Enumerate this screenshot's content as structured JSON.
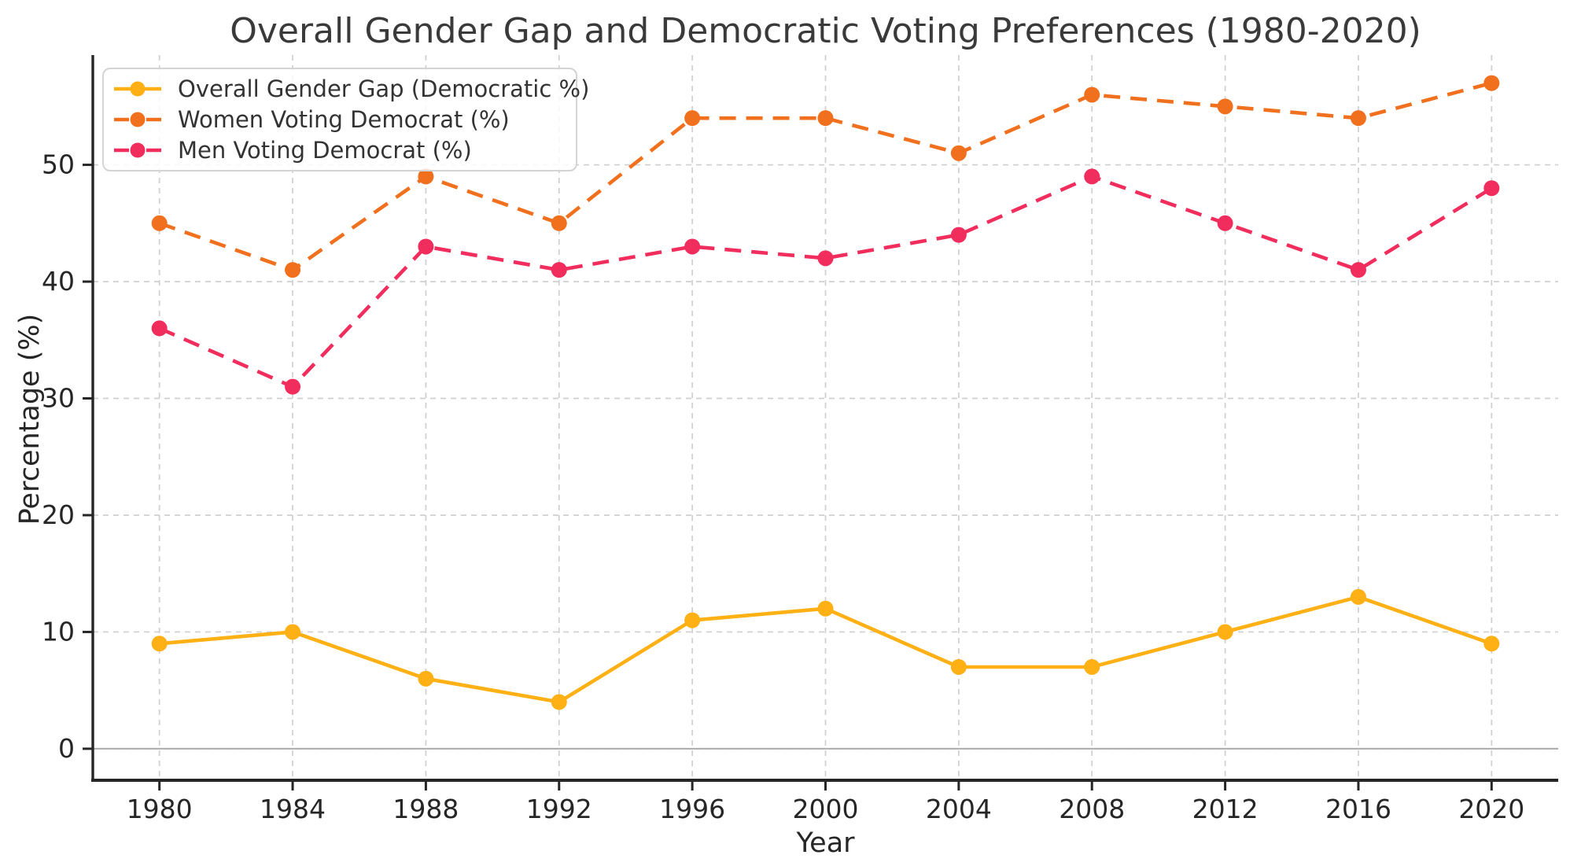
{
  "chart_data": {
    "type": "line",
    "title": "Overall Gender Gap and Democratic Voting Preferences (1980-2020)",
    "xlabel": "Year",
    "ylabel": "Percentage (%)",
    "x": [
      1980,
      1984,
      1988,
      1992,
      1996,
      2000,
      2004,
      2008,
      2012,
      2016,
      2020
    ],
    "y_ticks": [
      0,
      10,
      20,
      30,
      40,
      50
    ],
    "xlim": [
      1978,
      2022
    ],
    "ylim": [
      -2.7,
      59.4
    ],
    "grid": true,
    "grid_style": "dashed",
    "legend_position": "upper left",
    "zero_line": true,
    "series": [
      {
        "name": "Overall Gender Gap (Democratic %)",
        "color": "#FFB014",
        "line_style": "solid",
        "marker": "o",
        "values": [
          9,
          10,
          6,
          4,
          11,
          12,
          7,
          7,
          10,
          13,
          9
        ]
      },
      {
        "name": "Women Voting Democrat (%)",
        "color": "#F0701E",
        "line_style": "dashed",
        "marker": "o",
        "values": [
          45,
          41,
          49,
          45,
          54,
          54,
          51,
          56,
          55,
          54,
          57
        ]
      },
      {
        "name": "Men Voting Democrat (%)",
        "color": "#F02D5C",
        "line_style": "dashed",
        "marker": "o",
        "values": [
          36,
          31,
          43,
          41,
          43,
          42,
          44,
          49,
          45,
          41,
          48
        ]
      }
    ],
    "style": {
      "grid_color": "#cfcfcf",
      "zero_line_color": "#ababab",
      "spine_color": "#262626",
      "tick_label_color": "#262626",
      "title_color": "#3a3a3a",
      "background": "#ffffff"
    }
  }
}
